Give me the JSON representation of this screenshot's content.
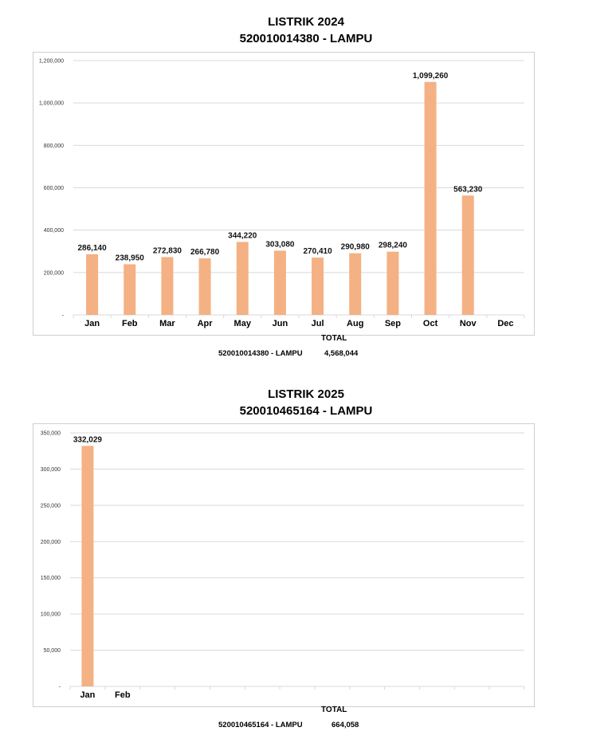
{
  "charts": [
    {
      "title_line1": "LISTRIK 2024",
      "title_line2": "520010014380 - LAMPU",
      "total_heading": "TOTAL",
      "total_label": "520010014380 - LAMPU",
      "total_value": "4,568,044"
    },
    {
      "title_line1": "LISTRIK 2025",
      "title_line2": "520010465164 - LAMPU",
      "total_heading": "TOTAL",
      "total_label": "520010465164 - LAMPU",
      "total_value": "664,058"
    }
  ],
  "chart_data": [
    {
      "type": "bar",
      "title": "LISTRIK 2024 520010014380 - LAMPU",
      "categories": [
        "Jan",
        "Feb",
        "Mar",
        "Apr",
        "May",
        "Jun",
        "Jul",
        "Aug",
        "Sep",
        "Oct",
        "Nov",
        "Dec"
      ],
      "values": [
        286140,
        238950,
        272830,
        266780,
        344220,
        303080,
        270410,
        290980,
        298240,
        1099260,
        563230,
        null
      ],
      "data_labels": [
        "286,140",
        "238,950",
        "272,830",
        "266,780",
        "344,220",
        "303,080",
        "270,410",
        "290,980",
        "298,240",
        "1,099,260",
        "563,230",
        ""
      ],
      "ylim": [
        0,
        1200000
      ],
      "yticks": [
        0,
        200000,
        400000,
        600000,
        800000,
        1000000,
        1200000
      ],
      "ytick_labels": [
        "-",
        "200,000",
        "400,000",
        "600,000",
        "800,000",
        "1,000,000",
        "1,200,000"
      ],
      "grid": true,
      "bar_color": "#f4b183",
      "grid_color": "#d9d9d9"
    },
    {
      "type": "bar",
      "title": "LISTRIK 2025 520010465164 - LAMPU",
      "categories": [
        "Jan",
        "Feb",
        "",
        "",
        "",
        "",
        "",
        "",
        "",
        "",
        "",
        "",
        ""
      ],
      "values": [
        332029,
        null,
        null,
        null,
        null,
        null,
        null,
        null,
        null,
        null,
        null,
        null,
        null
      ],
      "data_labels": [
        "332,029",
        "",
        "",
        "",
        "",
        "",
        "",
        "",
        "",
        "",
        "",
        "",
        ""
      ],
      "ylim": [
        0,
        350000
      ],
      "yticks": [
        0,
        50000,
        100000,
        150000,
        200000,
        250000,
        300000,
        350000
      ],
      "ytick_labels": [
        "-",
        "50,000",
        "100,000",
        "150,000",
        "200,000",
        "250,000",
        "300,000",
        "350,000"
      ],
      "grid": true,
      "bar_color": "#f4b183",
      "grid_color": "#d9d9d9"
    }
  ]
}
